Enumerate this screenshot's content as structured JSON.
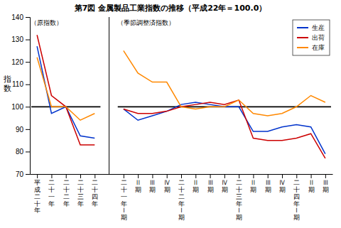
{
  "chart_data": {
    "type": "line",
    "title": "第7図  金属製品工業指数の推移（平成22年＝100.0）",
    "ylabel": "指数",
    "categories": [
      "平成二十年",
      "二十一年",
      "二十二年",
      "二十三年",
      "二十四年",
      null,
      "二十一年Ⅰ期",
      "Ⅱ期",
      "Ⅲ期",
      "Ⅳ期",
      "二十二年Ⅰ期",
      "Ⅱ期",
      "Ⅲ期",
      "Ⅳ期",
      "二十三年Ⅰ期",
      "Ⅱ期",
      "Ⅲ期",
      "Ⅳ期",
      "二十四年Ⅰ期",
      "Ⅱ期",
      "Ⅲ期"
    ],
    "series": [
      {
        "name": "生産",
        "color": "#0033cc",
        "values": [
          127,
          97,
          100,
          87,
          86,
          null,
          99,
          94,
          96,
          98,
          101,
          102,
          101,
          100,
          100,
          89,
          89,
          91,
          92,
          91,
          79
        ]
      },
      {
        "name": "出荷",
        "color": "#cc0000",
        "values": [
          132,
          105,
          100,
          83,
          83,
          null,
          99,
          97,
          97,
          98,
          100,
          101,
          102,
          101,
          103,
          86,
          85,
          85,
          86,
          88,
          77
        ]
      },
      {
        "name": "在庫",
        "color": "#ff8800",
        "values": [
          122,
          100,
          100,
          94,
          97,
          null,
          125,
          115,
          111,
          111,
          100,
          99,
          100,
          100,
          103,
          97,
          96,
          97,
          100,
          105,
          102
        ]
      }
    ],
    "annotations": [
      "（原指数）",
      "（季節調整済指数）"
    ],
    "reference_line": 100,
    "ylim": [
      70,
      140
    ],
    "yticks": [
      70,
      80,
      90,
      100,
      110,
      120,
      130,
      140
    ],
    "legend": "upper right"
  }
}
